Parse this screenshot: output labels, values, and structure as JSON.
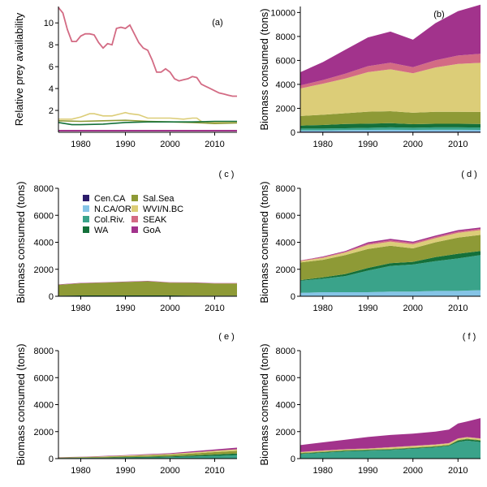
{
  "colors": {
    "Cen.CA": "#2c1b6b",
    "N.CA/OR": "#85c4e6",
    "Col.Riv.": "#3aa38a",
    "WA": "#14703a",
    "Sal.Sea": "#8e9a36",
    "WVI/N.BC": "#dccd78",
    "SEAK": "#d36b84",
    "GoA": "#a2338c"
  },
  "legend": [
    "Cen.CA",
    "N.CA/OR",
    "Col.Riv.",
    "WA",
    "Sal.Sea",
    "WVI/N.BC",
    "SEAK",
    "GoA"
  ],
  "x_ticks": [
    "1980",
    "1990",
    "2000",
    "2010"
  ],
  "chart_data": [
    {
      "id": "a",
      "tag": "(a)",
      "type": "line",
      "ylabel": "Relative prey availability",
      "xlim": [
        1975,
        2015
      ],
      "ylim": [
        0,
        11.5
      ],
      "y_ticks": [
        "2",
        "4",
        "6",
        "8",
        "10"
      ],
      "series": [
        {
          "key": "SEAK",
          "x": [
            1975,
            1976,
            1977,
            1978,
            1979,
            1980,
            1981,
            1982,
            1983,
            1984,
            1985,
            1986,
            1987,
            1988,
            1989,
            1990,
            1991,
            1992,
            1993,
            1994,
            1995,
            1996,
            1997,
            1998,
            1999,
            2000,
            2001,
            2002,
            2003,
            2004,
            2005,
            2006,
            2007,
            2008,
            2009,
            2010,
            2011,
            2012,
            2013,
            2014,
            2015
          ],
          "y": [
            11.4,
            10.9,
            9.4,
            8.3,
            8.3,
            8.8,
            9.0,
            9.0,
            8.9,
            8.2,
            7.7,
            8.1,
            8.0,
            9.5,
            9.6,
            9.5,
            9.8,
            9.0,
            8.2,
            7.7,
            7.5,
            6.6,
            5.5,
            5.5,
            5.8,
            5.5,
            4.9,
            4.7,
            4.8,
            4.9,
            5.1,
            5.0,
            4.4,
            4.2,
            4.0,
            3.8,
            3.6,
            3.5,
            3.4,
            3.3,
            3.3
          ]
        },
        {
          "key": "WVI/N.BC",
          "x": [
            1975,
            1978,
            1980,
            1982,
            1983,
            1985,
            1987,
            1989,
            1990,
            1991,
            1993,
            1995,
            1997,
            2000,
            2003,
            2005,
            2006,
            2007,
            2008,
            2010,
            2012,
            2015
          ],
          "y": [
            1.2,
            1.2,
            1.4,
            1.7,
            1.7,
            1.5,
            1.5,
            1.7,
            1.8,
            1.7,
            1.6,
            1.3,
            1.3,
            1.3,
            1.2,
            1.3,
            1.3,
            1.0,
            0.9,
            0.9,
            0.9,
            0.9
          ]
        },
        {
          "key": "Sal.Sea",
          "x": [
            1975,
            1980,
            1985,
            1990,
            1995,
            2000,
            2005,
            2010,
            2015
          ],
          "y": [
            1.05,
            1.0,
            1.05,
            1.1,
            1.0,
            0.95,
            0.9,
            0.8,
            0.85
          ]
        },
        {
          "key": "WA",
          "x": [
            1975,
            1978,
            1980,
            1985,
            1990,
            1995,
            2000,
            2005,
            2010,
            2015
          ],
          "y": [
            0.9,
            0.7,
            0.7,
            0.75,
            0.9,
            0.95,
            0.95,
            0.95,
            1.0,
            1.0
          ]
        },
        {
          "key": "GoA",
          "x": [
            1975,
            2015
          ],
          "y": [
            0.15,
            0.15
          ]
        }
      ]
    },
    {
      "id": "b",
      "tag": "(b)",
      "type": "area",
      "ylabel": "Biomass consumed (tons)",
      "xlim": [
        1975,
        2015
      ],
      "ylim": [
        0,
        10500
      ],
      "y_ticks": [
        "0",
        "2000",
        "4000",
        "6000",
        "8000",
        "10000"
      ],
      "x": [
        1975,
        1980,
        1985,
        1990,
        1995,
        2000,
        2005,
        2010,
        2015
      ],
      "layers": [
        {
          "key": "Cen.CA",
          "values": [
            60,
            60,
            60,
            60,
            60,
            60,
            60,
            60,
            60
          ]
        },
        {
          "key": "N.CA/OR",
          "values": [
            100,
            100,
            120,
            140,
            150,
            140,
            150,
            150,
            140
          ]
        },
        {
          "key": "Col.Riv.",
          "values": [
            150,
            150,
            160,
            170,
            200,
            180,
            200,
            200,
            200
          ]
        },
        {
          "key": "WA",
          "values": [
            250,
            300,
            350,
            350,
            350,
            300,
            300,
            300,
            300
          ]
        },
        {
          "key": "Sal.Sea",
          "values": [
            800,
            850,
            900,
            1000,
            1000,
            950,
            1000,
            1000,
            1000
          ]
        },
        {
          "key": "WVI/N.BC",
          "values": [
            2300,
            2600,
            2900,
            3300,
            3500,
            3300,
            3700,
            4000,
            4100
          ]
        },
        {
          "key": "SEAK",
          "values": [
            250,
            300,
            400,
            500,
            550,
            500,
            600,
            700,
            750
          ]
        },
        {
          "key": "GoA",
          "values": [
            1100,
            1500,
            2000,
            2400,
            2600,
            2300,
            3100,
            3700,
            4100
          ]
        }
      ]
    },
    {
      "id": "c",
      "tag": "( c )",
      "type": "area",
      "ylabel": "Biomass consumed (tons)",
      "xlim": [
        1975,
        2015
      ],
      "ylim": [
        0,
        8000
      ],
      "y_ticks": [
        "0",
        "2000",
        "4000",
        "6000",
        "8000"
      ],
      "x": [
        1975,
        1980,
        1985,
        1990,
        1995,
        2000,
        2005,
        2010,
        2015
      ],
      "layers": [
        {
          "key": "WA",
          "values": [
            50,
            60,
            60,
            60,
            60,
            60,
            50,
            50,
            50
          ]
        },
        {
          "key": "Sal.Sea",
          "values": [
            800,
            900,
            950,
            1000,
            1050,
            950,
            950,
            900,
            900
          ]
        },
        {
          "key": "SEAK",
          "values": [
            10,
            10,
            10,
            10,
            10,
            10,
            10,
            10,
            10
          ]
        },
        {
          "key": "GoA",
          "values": [
            20,
            20,
            20,
            20,
            20,
            20,
            20,
            20,
            20
          ]
        }
      ]
    },
    {
      "id": "d",
      "tag": "( d )",
      "type": "area",
      "ylabel": "Biomass consumed (tons)",
      "xlim": [
        1975,
        2015
      ],
      "ylim": [
        0,
        8000
      ],
      "y_ticks": [
        "0",
        "2000",
        "4000",
        "6000",
        "8000"
      ],
      "x": [
        1975,
        1980,
        1985,
        1990,
        1995,
        2000,
        2005,
        2010,
        2015
      ],
      "layers": [
        {
          "key": "N.CA/OR",
          "values": [
            250,
            300,
            300,
            300,
            350,
            350,
            400,
            400,
            450
          ]
        },
        {
          "key": "Col.Riv.",
          "values": [
            900,
            1000,
            1200,
            1600,
            1900,
            2000,
            2200,
            2400,
            2600
          ]
        },
        {
          "key": "WA",
          "values": [
            50,
            100,
            150,
            200,
            200,
            200,
            300,
            350,
            300
          ]
        },
        {
          "key": "Sal.Sea",
          "values": [
            1300,
            1300,
            1400,
            1400,
            1300,
            1000,
            1100,
            1200,
            1200
          ]
        },
        {
          "key": "WVI/N.BC",
          "values": [
            100,
            150,
            200,
            300,
            300,
            300,
            300,
            350,
            350
          ]
        },
        {
          "key": "SEAK",
          "values": [
            50,
            50,
            50,
            100,
            100,
            100,
            100,
            100,
            100
          ]
        },
        {
          "key": "GoA",
          "values": [
            0,
            50,
            50,
            100,
            100,
            100,
            100,
            100,
            100
          ]
        }
      ]
    },
    {
      "id": "e",
      "tag": "( e )",
      "type": "area",
      "ylabel": "Biomass consumed (tons)",
      "xlim": [
        1975,
        2015
      ],
      "ylim": [
        0,
        8000
      ],
      "y_ticks": [
        "0",
        "2000",
        "4000",
        "6000",
        "8000"
      ],
      "x": [
        1975,
        1980,
        1985,
        1990,
        1995,
        2000,
        2005,
        2010,
        2015
      ],
      "layers": [
        {
          "key": "Col.Riv.",
          "values": [
            30,
            40,
            50,
            60,
            80,
            100,
            150,
            200,
            250
          ]
        },
        {
          "key": "WA",
          "values": [
            20,
            20,
            30,
            40,
            50,
            60,
            80,
            100,
            120
          ]
        },
        {
          "key": "Sal.Sea",
          "values": [
            30,
            40,
            60,
            80,
            100,
            120,
            150,
            180,
            200
          ]
        },
        {
          "key": "WVI/N.BC",
          "values": [
            10,
            20,
            30,
            40,
            50,
            60,
            80,
            100,
            120
          ]
        },
        {
          "key": "GoA",
          "values": [
            10,
            20,
            30,
            40,
            50,
            60,
            80,
            100,
            120
          ]
        }
      ]
    },
    {
      "id": "f",
      "tag": "( f )",
      "type": "area",
      "ylabel": "Biomass consumed (tons)",
      "xlim": [
        1975,
        2015
      ],
      "ylim": [
        0,
        8000
      ],
      "y_ticks": [
        "0",
        "2000",
        "4000",
        "6000",
        "8000"
      ],
      "x": [
        1975,
        1980,
        1985,
        1990,
        1995,
        2000,
        2005,
        2008,
        2010,
        2012,
        2015
      ],
      "layers": [
        {
          "key": "N.CA/OR",
          "values": [
            30,
            30,
            30,
            30,
            30,
            30,
            30,
            30,
            30,
            30,
            30
          ]
        },
        {
          "key": "Col.Riv.",
          "values": [
            300,
            400,
            500,
            550,
            600,
            700,
            800,
            900,
            1200,
            1300,
            1200
          ]
        },
        {
          "key": "WA",
          "values": [
            50,
            50,
            50,
            50,
            50,
            50,
            50,
            50,
            100,
            100,
            100
          ]
        },
        {
          "key": "Sal.Sea",
          "values": [
            50,
            50,
            50,
            50,
            50,
            50,
            50,
            50,
            50,
            50,
            50
          ]
        },
        {
          "key": "WVI/N.BC",
          "values": [
            50,
            50,
            50,
            50,
            100,
            100,
            100,
            100,
            100,
            100,
            100
          ]
        },
        {
          "key": "SEAK",
          "values": [
            20,
            20,
            20,
            20,
            20,
            20,
            20,
            20,
            20,
            20,
            20
          ]
        },
        {
          "key": "GoA",
          "values": [
            500,
            600,
            700,
            850,
            900,
            900,
            950,
            1000,
            1100,
            1150,
            1500
          ]
        }
      ]
    }
  ]
}
